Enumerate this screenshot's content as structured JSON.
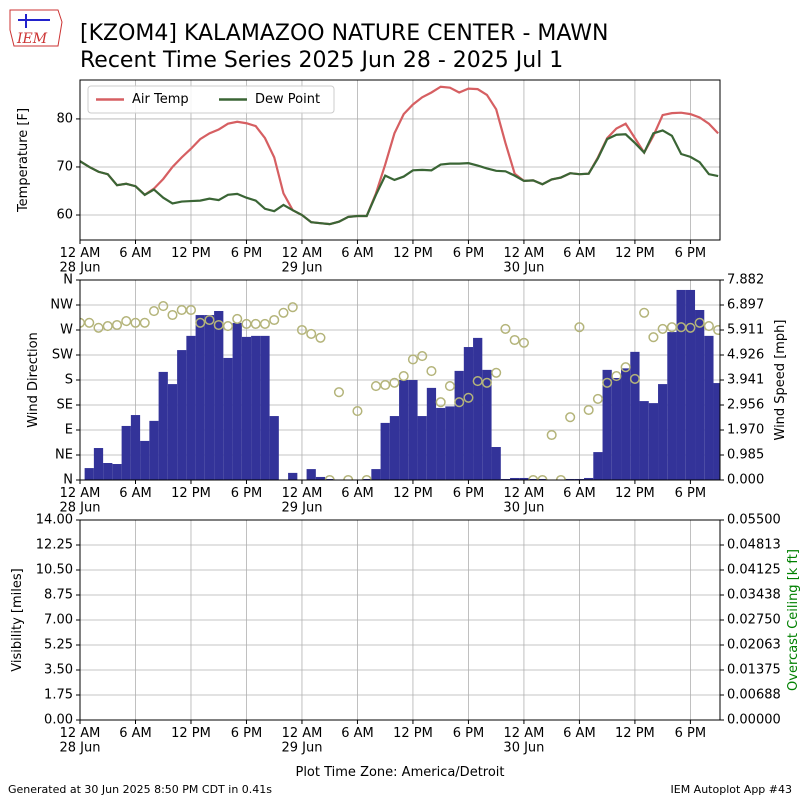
{
  "header": {
    "logo_text": "IEM",
    "title": "[KZOM4] KALAMAZOO NATURE CENTER - MAWN",
    "subtitle": "Recent Time Series 2025 Jun 28 - 2025 Jul 1"
  },
  "footer": {
    "left": "Generated at 30 Jun 2025 8:50 PM CDT in 0.41s",
    "right": "IEM Autoplot App #43"
  },
  "chart_data": [
    {
      "type": "line",
      "ylabel": "Temperature [F]",
      "grid": true,
      "legend": "upper left",
      "x": [
        0,
        1,
        2,
        3,
        4,
        5,
        6,
        7,
        8,
        9,
        10,
        11,
        12,
        13,
        14,
        15,
        16,
        17,
        18,
        19,
        20,
        21,
        22,
        23,
        24,
        25,
        26,
        27,
        28,
        29,
        30,
        31,
        32,
        33,
        34,
        35,
        36,
        37,
        38,
        39,
        40,
        41,
        42,
        43,
        44,
        45,
        46,
        47,
        48,
        49,
        50,
        51,
        52,
        53,
        54,
        55,
        56,
        57,
        58,
        59,
        60,
        61,
        62,
        63,
        64,
        65,
        66,
        67,
        68,
        69
      ],
      "xlim": [
        0,
        69.2
      ],
      "xticks": [
        {
          "value": 0,
          "label": "12 AM\n28 Jun"
        },
        {
          "value": 6,
          "label": "6 AM"
        },
        {
          "value": 12,
          "label": "12 PM"
        },
        {
          "value": 18,
          "label": "6 PM"
        },
        {
          "value": 24,
          "label": "12 AM\n29 Jun"
        },
        {
          "value": 30,
          "label": "6 AM"
        },
        {
          "value": 36,
          "label": "12 PM"
        },
        {
          "value": 42,
          "label": "6 PM"
        },
        {
          "value": 48,
          "label": "12 AM\n30 Jun"
        },
        {
          "value": 54,
          "label": "6 AM"
        },
        {
          "value": 60,
          "label": "12 PM"
        },
        {
          "value": 66,
          "label": "6 PM"
        }
      ],
      "ylim": [
        54.8,
        88.1
      ],
      "yticks": [
        60,
        70,
        80
      ],
      "series": [
        {
          "name": "Air Temp",
          "color": "#d65f62",
          "values": [
            71.2,
            70,
            69,
            68.5,
            66.2,
            66.5,
            66,
            64.2,
            65.5,
            67.5,
            70,
            72,
            73.8,
            75.8,
            77,
            77.8,
            79,
            79.4,
            79.1,
            78.5,
            76,
            72,
            64.5,
            61,
            60,
            58.5,
            58.3,
            58.1,
            58.6,
            59.6,
            59.8,
            59.8,
            64.5,
            70.5,
            77,
            81,
            83,
            84.5,
            85.5,
            86.7,
            86.5,
            85.5,
            86.3,
            86.2,
            85,
            82,
            75,
            68.6,
            67.1,
            67.2,
            66.4,
            67.4,
            67.8,
            68.7,
            68.5,
            68.6,
            72,
            76,
            78,
            79,
            76,
            73,
            76.5,
            80.8,
            81.2,
            81.3,
            81,
            80.3,
            79,
            77
          ]
        },
        {
          "name": "Dew Point",
          "color": "#3a6535",
          "values": [
            71.2,
            70,
            69,
            68.5,
            66.2,
            66.5,
            66,
            64.2,
            65.3,
            63.6,
            62.4,
            62.8,
            62.9,
            63,
            63.4,
            63.1,
            64.2,
            64.4,
            63.6,
            63,
            61.3,
            60.8,
            62.1,
            61,
            60,
            58.5,
            58.3,
            58.1,
            58.6,
            59.6,
            59.8,
            59.8,
            64.2,
            68.2,
            67.3,
            68,
            69.3,
            69.4,
            69.3,
            70.5,
            70.7,
            70.7,
            70.8,
            70.3,
            69.7,
            69.2,
            69.1,
            68.2,
            67.1,
            67.2,
            66.4,
            67.4,
            67.8,
            68.7,
            68.5,
            68.6,
            71.8,
            75.8,
            76.7,
            76.8,
            75,
            73,
            77,
            77.6,
            76.5,
            72.7,
            72.1,
            71,
            68.5,
            68.1
          ]
        }
      ]
    },
    {
      "type": "bar",
      "ylabel": "Wind Direction",
      "y2label": "Wind Speed [mph]",
      "grid": true,
      "x": [
        0,
        1,
        2,
        3,
        4,
        5,
        6,
        7,
        8,
        9,
        10,
        11,
        12,
        13,
        14,
        15,
        16,
        17,
        18,
        19,
        20,
        21,
        22,
        23,
        24,
        25,
        26,
        27,
        28,
        29,
        30,
        31,
        32,
        33,
        34,
        35,
        36,
        37,
        38,
        39,
        40,
        41,
        42,
        43,
        44,
        45,
        46,
        47,
        48,
        49,
        50,
        51,
        52,
        53,
        54,
        55,
        56,
        57,
        58,
        59,
        60,
        61,
        62,
        63,
        64,
        65,
        66,
        67,
        68,
        69
      ],
      "xlim": [
        0,
        69.2
      ],
      "xticks": [
        {
          "value": 0,
          "label": "12 AM\n28 Jun"
        },
        {
          "value": 6,
          "label": "6 AM"
        },
        {
          "value": 12,
          "label": "12 PM"
        },
        {
          "value": 18,
          "label": "6 PM"
        },
        {
          "value": 24,
          "label": "12 AM\n29 Jun"
        },
        {
          "value": 30,
          "label": "6 AM"
        },
        {
          "value": 36,
          "label": "12 PM"
        },
        {
          "value": 42,
          "label": "6 PM"
        },
        {
          "value": 48,
          "label": "12 AM\n30 Jun"
        },
        {
          "value": 54,
          "label": "6 AM"
        },
        {
          "value": 60,
          "label": "12 PM"
        },
        {
          "value": 66,
          "label": "6 PM"
        }
      ],
      "ylim": [
        0,
        360
      ],
      "yticks": [
        {
          "value": 0,
          "label": "N"
        },
        {
          "value": 45,
          "label": "NE"
        },
        {
          "value": 90,
          "label": "E"
        },
        {
          "value": 135,
          "label": "SE"
        },
        {
          "value": 180,
          "label": "S"
        },
        {
          "value": 225,
          "label": "SW"
        },
        {
          "value": 270,
          "label": "W"
        },
        {
          "value": 315,
          "label": "NW"
        },
        {
          "value": 360,
          "label": "N"
        }
      ],
      "y2lim": [
        0,
        7.882
      ],
      "y2ticks": [
        {
          "value": 0,
          "label": "0.000"
        },
        0.985,
        {
          "value": 1.97,
          "label": "1.970"
        },
        2.956,
        3.941,
        4.926,
        5.911,
        6.897,
        7.882
      ],
      "series": [
        {
          "type": "bar",
          "axis": "y2",
          "color": "#333399",
          "values": [
            null,
            0.47,
            1.26,
            0.67,
            0.63,
            2.13,
            2.56,
            1.54,
            2.33,
            4.26,
            3.78,
            5.12,
            5.68,
            6.5,
            6.5,
            6.66,
            4.81,
            6.19,
            5.64,
            5.68,
            5.68,
            2.52,
            0,
            0.28,
            0,
            0.43,
            0.12,
            0.04,
            0,
            0,
            0,
            0.04,
            0.43,
            2.25,
            2.52,
            3.94,
            3.94,
            2.52,
            3.63,
            2.84,
            2.9,
            4.3,
            5.24,
            5.6,
            4.34,
            1.3,
            0.04,
            0.08,
            0.08,
            0.04,
            0.04,
            0,
            0,
            0.04,
            0.04,
            0.08,
            1.1,
            4.34,
            4.02,
            4.4,
            5.05,
            3.11,
            3.03,
            3.78,
            5.83,
            7.49,
            7.49,
            6.7,
            5.68,
            3.82
          ]
        },
        {
          "type": "scatter",
          "color": "#b4b47a",
          "values": [
            283,
            283,
            274,
            277,
            279,
            286,
            283,
            283,
            304,
            313,
            297,
            306,
            306,
            283,
            288,
            279,
            277,
            290,
            281,
            281,
            281,
            288,
            301,
            311,
            270,
            263,
            256,
            0,
            158,
            0,
            124,
            0,
            169,
            171,
            175,
            187,
            217,
            223,
            196,
            140,
            169,
            140,
            148,
            178,
            175,
            193,
            272,
            252,
            247,
            0,
            0,
            81,
            0,
            113,
            275,
            126,
            146,
            175,
            187,
            203,
            182,
            301,
            257,
            272,
            275,
            275,
            274,
            283,
            277,
            270
          ]
        }
      ]
    },
    {
      "type": "line",
      "ylabel": "Visibility [miles]",
      "y2label": "Overcast Ceiling [k ft]",
      "y2label_color": "#008000",
      "xlabel": "Plot Time Zone: America/Detroit",
      "grid": true,
      "xlim": [
        0,
        69.2
      ],
      "xticks": [
        {
          "value": 0,
          "label": "12 AM\n28 Jun"
        },
        {
          "value": 6,
          "label": "6 AM"
        },
        {
          "value": 12,
          "label": "12 PM"
        },
        {
          "value": 18,
          "label": "6 PM"
        },
        {
          "value": 24,
          "label": "12 AM\n29 Jun"
        },
        {
          "value": 30,
          "label": "6 AM"
        },
        {
          "value": 36,
          "label": "12 PM"
        },
        {
          "value": 42,
          "label": "6 PM"
        },
        {
          "value": 48,
          "label": "12 AM\n30 Jun"
        },
        {
          "value": 54,
          "label": "6 AM"
        },
        {
          "value": 60,
          "label": "12 PM"
        },
        {
          "value": 66,
          "label": "6 PM"
        }
      ],
      "ylim": [
        0,
        14
      ],
      "yticks": [
        {
          "value": 0,
          "label": "0.00"
        },
        1.75,
        {
          "value": 3.5,
          "label": "3.50"
        },
        {
          "value": 5.25,
          "label": "5.25"
        },
        {
          "value": 7,
          "label": "7.00"
        },
        8.75,
        {
          "value": 10.5,
          "label": "10.50"
        },
        12.25,
        {
          "value": 14,
          "label": "14.00"
        }
      ],
      "y2lim": [
        0,
        0.055
      ],
      "y2ticks": [
        {
          "value": 0,
          "label": "0.00000"
        },
        {
          "value": 0.006875,
          "label": "0.00688"
        },
        0.01375,
        {
          "value": 0.020625,
          "label": "0.02063"
        },
        {
          "value": 0.0275,
          "label": "0.02750"
        },
        {
          "value": 0.034375,
          "label": "0.03438"
        },
        0.04125,
        {
          "value": 0.048125,
          "label": "0.04813"
        },
        {
          "value": 0.055,
          "label": "0.05500"
        }
      ]
    }
  ]
}
